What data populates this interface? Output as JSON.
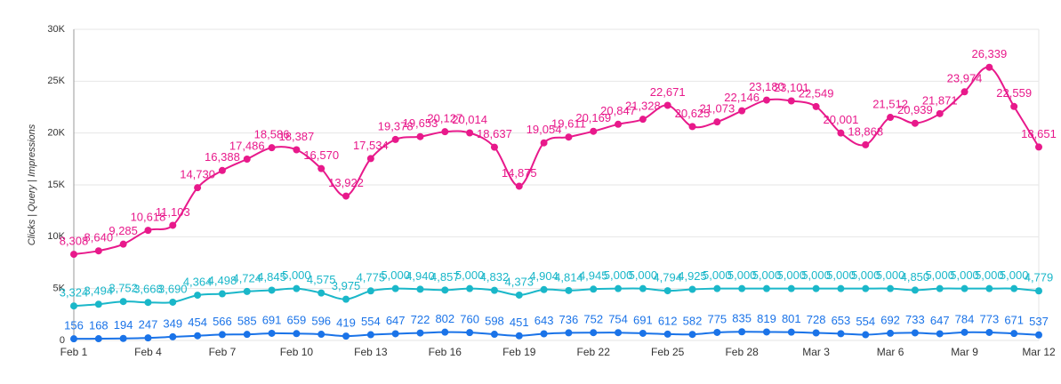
{
  "chart_data": {
    "type": "line",
    "y_label": "Clicks | Query | Impressions",
    "categories": [
      "Feb 1",
      null,
      null,
      "Feb 4",
      null,
      null,
      "Feb 7",
      null,
      null,
      "Feb 10",
      null,
      null,
      "Feb 13",
      null,
      null,
      "Feb 16",
      null,
      null,
      "Feb 19",
      null,
      null,
      "Feb 22",
      null,
      null,
      "Feb 25",
      null,
      null,
      "Feb 28",
      null,
      null,
      "Mar 3",
      null,
      null,
      "Mar 6",
      null,
      null,
      "Mar 9",
      null,
      null,
      "Mar 12"
    ],
    "series": [
      {
        "name": "Impressions",
        "color": "#e8198b",
        "values": [
          8308,
          8640,
          9285,
          10618,
          11103,
          14730,
          16388,
          17486,
          18586,
          18387,
          16570,
          13922,
          17534,
          19378,
          19653,
          20127,
          20014,
          18637,
          14875,
          19054,
          19611,
          20169,
          20847,
          21328,
          22671,
          20625,
          21073,
          22146,
          23180,
          23101,
          22549,
          20001,
          18868,
          21512,
          20939,
          21871,
          23974,
          26339,
          22559,
          18651
        ],
        "value_labels": [
          "8,308",
          "8,640",
          "9,285",
          "10,618",
          "11,103",
          "14,730",
          "16,388",
          "17,486",
          "18,586",
          "18,387",
          "16,570",
          "13,922",
          "17,534",
          "19,378",
          "19,653",
          "20,127",
          "20,014",
          "18,637",
          "14,875",
          "19,054",
          "19,611",
          "20,169",
          "20,847",
          "21,328",
          "22,671",
          "20,625",
          "21,073",
          "22,146",
          "23,180",
          "23,101",
          "22,549",
          "20,001",
          "18,868",
          "21,512",
          "20,939",
          "21,871",
          "23,974",
          "26,339",
          "22,559",
          "18,651"
        ]
      },
      {
        "name": "Query",
        "color": "#1ab7c9",
        "values": [
          3324,
          3494,
          3752,
          3668,
          3690,
          4364,
          4498,
          4724,
          4845,
          5000,
          4575,
          3975,
          4775,
          5000,
          4940,
          4857,
          5000,
          4832,
          4373,
          4904,
          4814,
          4945,
          5000,
          5000,
          4794,
          4925,
          5000,
          5000,
          5000,
          5000,
          5000,
          5000,
          5000,
          5000,
          4850,
          5000,
          5000,
          5000,
          5000,
          4779
        ],
        "value_labels": [
          "3,324",
          "3,494",
          "3,752",
          "3,668",
          "3,690",
          "4,364",
          "4,498",
          "4,724",
          "4,845",
          "5,000",
          "4,575",
          "3,975",
          "4,775",
          "5,000",
          "4,940",
          "4,857",
          "5,000",
          "4,832",
          "4,373",
          "4,904",
          "4,814",
          "4,945",
          "5,000",
          "5,000",
          "4,794",
          "4,925",
          "5,000",
          "5,000",
          "5,000",
          "5,000",
          "5,000",
          "5,000",
          "5,000",
          "5,000",
          "4,850",
          "5,000",
          "5,000",
          "5,000",
          "5,000",
          "4,779"
        ]
      },
      {
        "name": "Clicks",
        "color": "#1a73e8",
        "values": [
          156,
          168,
          194,
          247,
          349,
          454,
          566,
          585,
          691,
          659,
          596,
          419,
          554,
          647,
          722,
          802,
          760,
          598,
          451,
          643,
          736,
          752,
          754,
          691,
          612,
          582,
          775,
          835,
          819,
          801,
          728,
          653,
          554,
          692,
          733,
          647,
          784,
          773,
          671,
          537
        ]
      }
    ],
    "ylim": [
      0,
      30000
    ],
    "yticks": [
      0,
      {
        "value": 5000,
        "label": "5K"
      },
      {
        "value": 10000,
        "label": "10K"
      },
      {
        "value": 15000,
        "label": "15K"
      },
      {
        "value": 20000,
        "label": "20K"
      },
      {
        "value": 25000,
        "label": "25K"
      },
      {
        "value": 30000,
        "label": "30K"
      }
    ],
    "grid": true
  }
}
